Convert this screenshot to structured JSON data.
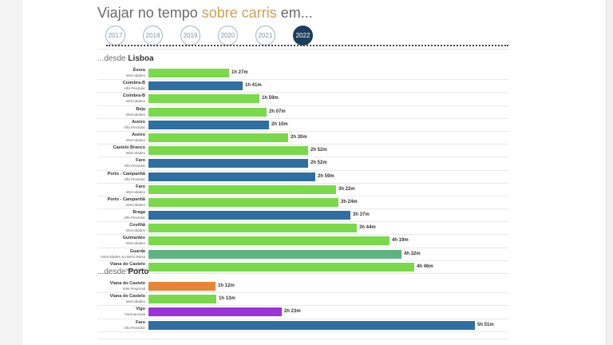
{
  "title": {
    "part1": "Viajar no tempo ",
    "highlight": "sobre carris",
    "part2": " em..."
  },
  "years": [
    "2017",
    "2018",
    "2019",
    "2020",
    "2021",
    "2022"
  ],
  "active_year": "2022",
  "colors": {
    "intercidades": "#7ad94a",
    "alfa": "#2f6fa1",
    "regional": "#e68537",
    "internacional": "#9b34d8",
    "beira_baixa": "#5fb37e",
    "active_year": "#1c3e5b"
  },
  "chart_data": [
    {
      "type": "bar",
      "prefix": "...desde ",
      "origin": "Lisboa",
      "max_minutes": 351,
      "rows": [
        {
          "city": "Évora",
          "service": "Intercidades",
          "label": "1h 27m",
          "minutes": 87,
          "color": "#7ad94a"
        },
        {
          "city": "Coimbra-B",
          "service": "Alfa Pendular",
          "label": "1h 41m",
          "minutes": 101,
          "color": "#2f6fa1"
        },
        {
          "city": "Coimbra-B",
          "service": "Intercidades",
          "label": "1h 59m",
          "minutes": 119,
          "color": "#7ad94a"
        },
        {
          "city": "Beja",
          "service": "Intercidades",
          "label": "2h 07m",
          "minutes": 127,
          "color": "#7ad94a"
        },
        {
          "city": "Aveiro",
          "service": "Alfa Pendular",
          "label": "2h 10m",
          "minutes": 130,
          "color": "#2f6fa1"
        },
        {
          "city": "Aveiro",
          "service": "Intercidades",
          "label": "2h 30m",
          "minutes": 150,
          "color": "#7ad94a"
        },
        {
          "city": "Castelo Branco",
          "service": "Intercidades",
          "label": "2h 52m",
          "minutes": 172,
          "color": "#7ad94a"
        },
        {
          "city": "Faro",
          "service": "Alfa Pendular",
          "label": "2h 52m",
          "minutes": 172,
          "color": "#2f6fa1"
        },
        {
          "city": "Porto - Campanhã",
          "service": "Alfa Pendular",
          "label": "2h 59m",
          "minutes": 179,
          "color": "#2f6fa1"
        },
        {
          "city": "Faro",
          "service": "Intercidades",
          "label": "3h 22m",
          "minutes": 202,
          "color": "#7ad94a"
        },
        {
          "city": "Porto - Campanhã",
          "service": "Intercidades",
          "label": "3h 24m",
          "minutes": 204,
          "color": "#7ad94a"
        },
        {
          "city": "Braga",
          "service": "Alfa Pendular",
          "label": "3h 37m",
          "minutes": 217,
          "color": "#2f6fa1"
        },
        {
          "city": "Covilhã",
          "service": "Intercidades",
          "label": "3h 44m",
          "minutes": 224,
          "color": "#7ad94a"
        },
        {
          "city": "Guimarães",
          "service": "Intercidades",
          "label": "4h 19m",
          "minutes": 259,
          "color": "#7ad94a"
        },
        {
          "city": "Guarda",
          "service": "Intercidades via Beira Baixa",
          "label": "4h 32m",
          "minutes": 272,
          "color": "#5fb37e"
        },
        {
          "city": "Viana do Castelo",
          "service": "Intercidades",
          "label": "4h 46m",
          "minutes": 286,
          "color": "#7ad94a"
        }
      ]
    },
    {
      "type": "bar",
      "prefix": "...desde ",
      "origin": "Porto",
      "max_minutes": 351,
      "rows": [
        {
          "city": "Viana do Castelo",
          "service": "Inter-Regional",
          "label": "1h 12m",
          "minutes": 72,
          "color": "#e68537"
        },
        {
          "city": "Viana do Castelo",
          "service": "Intercidades",
          "label": "1h 13m",
          "minutes": 73,
          "color": "#7ad94a"
        },
        {
          "city": "Vigo",
          "service": "Internacional",
          "label": "2h 23m",
          "minutes": 143,
          "color": "#9b34d8"
        },
        {
          "city": "Faro",
          "service": "Alfa Pendular",
          "label": "5h 51m",
          "minutes": 351,
          "color": "#2f6fa1"
        }
      ]
    }
  ]
}
